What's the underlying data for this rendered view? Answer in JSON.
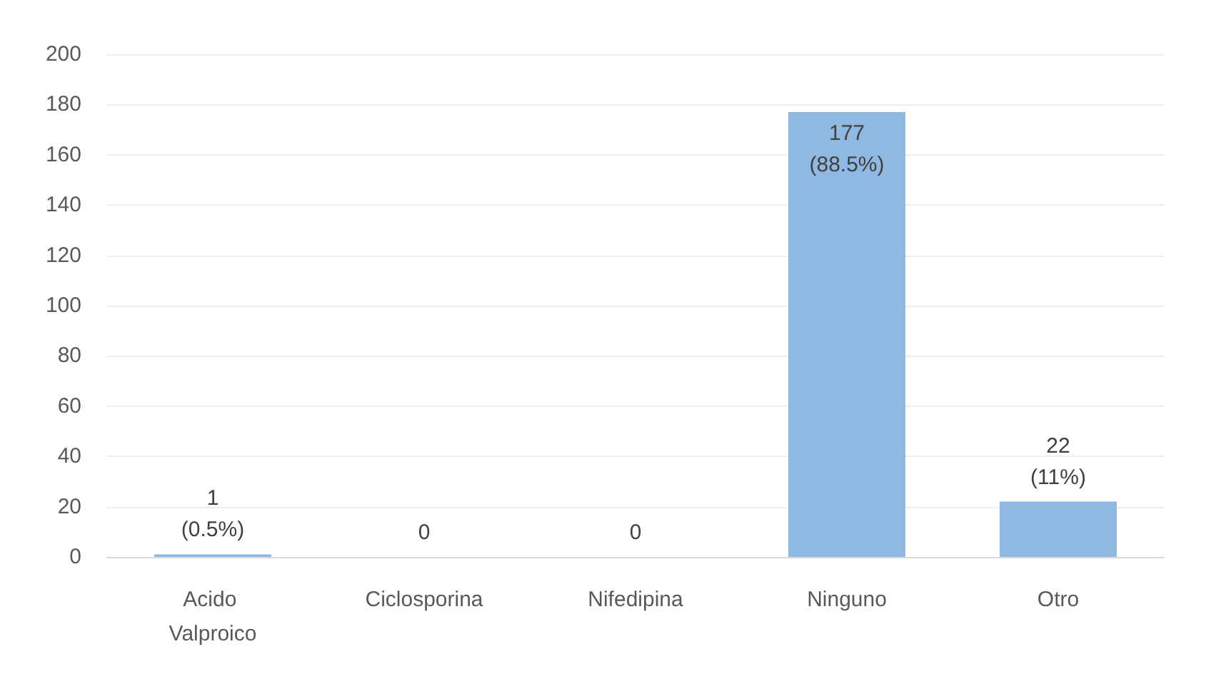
{
  "chart_data": {
    "type": "bar",
    "categories": [
      "Acido Valproico",
      "Ciclosporina",
      "Nifedipina",
      "Ninguno",
      "Otro"
    ],
    "values": [
      1,
      0,
      0,
      177,
      22
    ],
    "value_labels": [
      "1\n(0.5%)",
      "0",
      "0",
      "177\n(88.5%)",
      "22\n(11%)"
    ],
    "color": "#8fb8e2",
    "ylim": [
      0,
      200
    ],
    "yticks": [
      0,
      20,
      40,
      60,
      80,
      100,
      120,
      140,
      160,
      180,
      200
    ],
    "grid": "y"
  }
}
